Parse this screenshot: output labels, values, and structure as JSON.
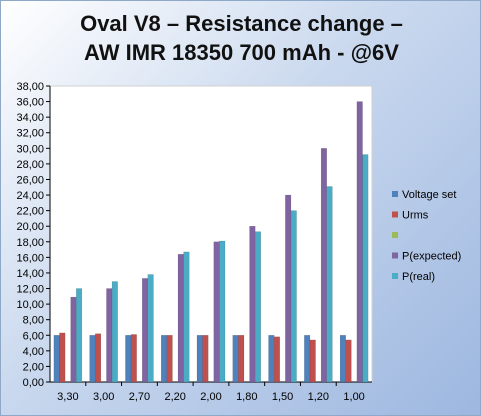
{
  "chart_data": {
    "type": "bar",
    "title_line1": "Oval V8 – Resistance change –",
    "title_line2": "AW IMR 18350 700 mAh - @6V",
    "xlabel": "",
    "ylabel": "",
    "ylim": [
      0,
      38
    ],
    "ytick_step": 2,
    "grid": false,
    "legend_position": "right",
    "categories": [
      "3,30",
      "3,00",
      "2,70",
      "2,20",
      "2,00",
      "1,80",
      "1,50",
      "1,20",
      "1,00"
    ],
    "ytick_labels": [
      "0,00",
      "2,00",
      "4,00",
      "6,00",
      "8,00",
      "10,00",
      "12,00",
      "14,00",
      "16,00",
      "18,00",
      "20,00",
      "22,00",
      "24,00",
      "26,00",
      "28,00",
      "30,00",
      "32,00",
      "34,00",
      "36,00",
      "38,00"
    ],
    "series": [
      {
        "name": "Voltage set",
        "color": "#4f81bd",
        "values": [
          6,
          6,
          6,
          6,
          6,
          6,
          6,
          6,
          6
        ]
      },
      {
        "name": "Urms",
        "color": "#c0504d",
        "values": [
          6.3,
          6.2,
          6.1,
          6.0,
          6.0,
          6.0,
          5.8,
          5.4,
          5.4
        ]
      },
      {
        "name": "",
        "color": "#9bbb59",
        "values": [
          0,
          0,
          0,
          0,
          0,
          0,
          0,
          0,
          0
        ]
      },
      {
        "name": "P(expected)",
        "color": "#8064a2",
        "values": [
          10.9,
          12.0,
          13.3,
          16.4,
          18.0,
          20.0,
          24.0,
          30.0,
          36.0
        ]
      },
      {
        "name": "P(real)",
        "color": "#4bacc6",
        "values": [
          12.0,
          12.9,
          13.8,
          16.7,
          18.1,
          19.3,
          22.0,
          25.1,
          29.2
        ]
      }
    ]
  }
}
